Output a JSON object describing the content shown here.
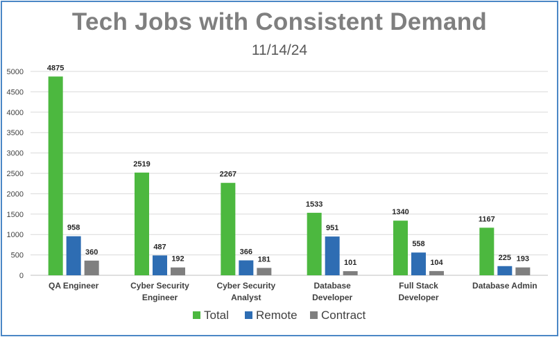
{
  "chart_data": {
    "type": "bar",
    "title": "Tech Jobs with Consistent Demand",
    "subtitle": "11/14/24",
    "categories": [
      [
        "QA Engineer"
      ],
      [
        "Cyber Security",
        "Engineer"
      ],
      [
        "Cyber Security",
        "Analyst"
      ],
      [
        "Database",
        "Developer"
      ],
      [
        "Full Stack",
        "Developer"
      ],
      [
        "Database Admin"
      ]
    ],
    "series": [
      {
        "name": "Total",
        "color": "#4cb83f",
        "values": [
          4875,
          2519,
          2267,
          1533,
          1340,
          1167
        ]
      },
      {
        "name": "Remote",
        "color": "#2e6db3",
        "values": [
          958,
          487,
          366,
          951,
          558,
          225
        ]
      },
      {
        "name": "Contract",
        "color": "#7f7f7f",
        "values": [
          360,
          192,
          181,
          101,
          104,
          193
        ]
      }
    ],
    "ylim": [
      0,
      5000
    ],
    "yticks": [
      0,
      500,
      1000,
      1500,
      2000,
      2500,
      3000,
      3500,
      4000,
      4500,
      5000
    ],
    "grid": true,
    "legend_position": "bottom"
  }
}
